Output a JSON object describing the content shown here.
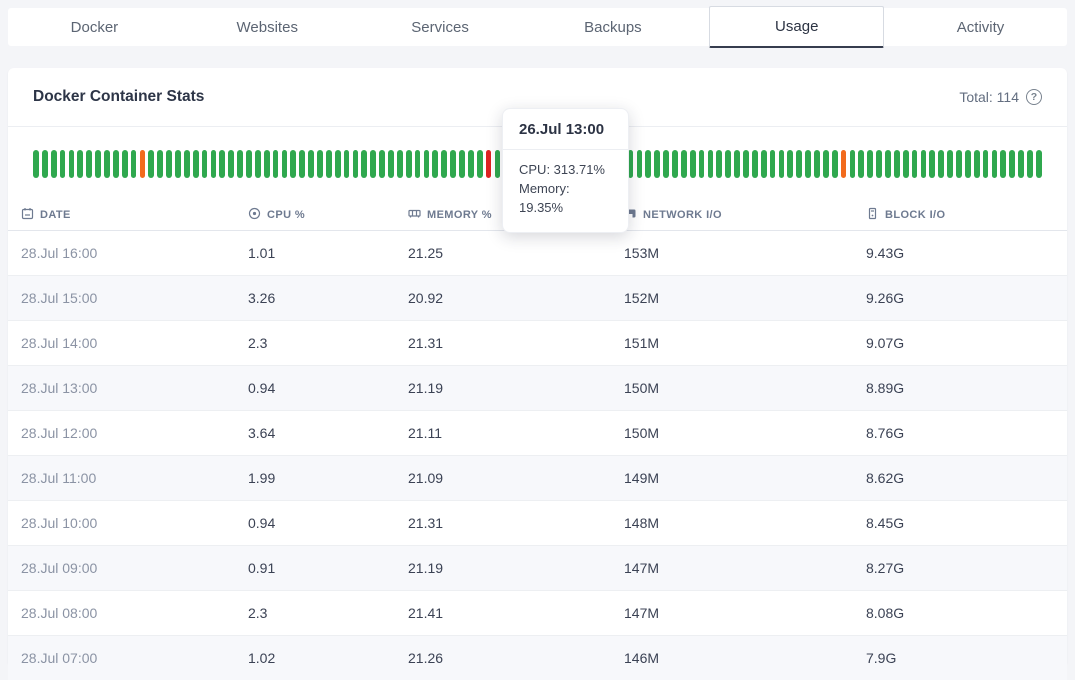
{
  "nav": {
    "tabs": [
      {
        "label": "Docker",
        "active": false
      },
      {
        "label": "Websites",
        "active": false
      },
      {
        "label": "Services",
        "active": false
      },
      {
        "label": "Backups",
        "active": false
      },
      {
        "label": "Usage",
        "active": true
      },
      {
        "label": "Activity",
        "active": false
      }
    ]
  },
  "card": {
    "title": "Docker Container Stats",
    "total_label": "Total: 114",
    "help_icon": "question-circle-icon"
  },
  "tooltip": {
    "title": "26.Jul 13:00",
    "cpu_line": "CPU: 313.71%",
    "memory_line": "Memory: 19.35%"
  },
  "status_strip": {
    "total_bars": 114,
    "colors": {
      "ok": "#2fa84e",
      "warning": "#f26b1d",
      "danger": "#dd2423"
    },
    "bar_status_overrides": {
      "12": "warning",
      "51": "danger",
      "91": "warning"
    }
  },
  "table": {
    "columns": [
      {
        "icon": "calendar-icon",
        "label": "DATE"
      },
      {
        "icon": "cpu-icon",
        "label": "CPU %"
      },
      {
        "icon": "memory-icon",
        "label": "MEMORY %"
      },
      {
        "icon": "network-icon",
        "label": "NETWORK I/O"
      },
      {
        "icon": "block-device-icon",
        "label": "BLOCK I/O"
      }
    ],
    "rows": [
      [
        "28.Jul 16:00",
        "1.01",
        "21.25",
        "153M",
        "9.43G"
      ],
      [
        "28.Jul 15:00",
        "3.26",
        "20.92",
        "152M",
        "9.26G"
      ],
      [
        "28.Jul 14:00",
        "2.3",
        "21.31",
        "151M",
        "9.07G"
      ],
      [
        "28.Jul 13:00",
        "0.94",
        "21.19",
        "150M",
        "8.89G"
      ],
      [
        "28.Jul 12:00",
        "3.64",
        "21.11",
        "150M",
        "8.76G"
      ],
      [
        "28.Jul 11:00",
        "1.99",
        "21.09",
        "149M",
        "8.62G"
      ],
      [
        "28.Jul 10:00",
        "0.94",
        "21.31",
        "148M",
        "8.45G"
      ],
      [
        "28.Jul 09:00",
        "0.91",
        "21.19",
        "147M",
        "8.27G"
      ],
      [
        "28.Jul 08:00",
        "2.3",
        "21.41",
        "147M",
        "8.08G"
      ],
      [
        "28.Jul 07:00",
        "1.02",
        "21.26",
        "146M",
        "7.9G"
      ]
    ]
  }
}
